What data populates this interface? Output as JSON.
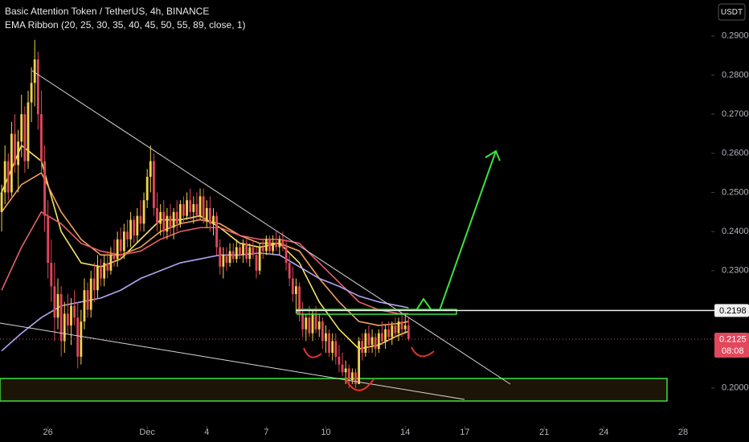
{
  "chart_data": {
    "type": "candlestick",
    "title": "Basic Attention Token / TetherUS, 4h, BINANCE",
    "subtitle": "EMA Ribbon (20, 25, 30, 35, 40, 45, 50, 55, 89, close, 1)",
    "currency": "USDT",
    "up_color": "#f2d34a",
    "down_color": "#e2475c",
    "xlim": [
      -0.5,
      214.5
    ],
    "xticks": [
      {
        "value": 14,
        "label": "26"
      },
      {
        "value": 44,
        "label": "Dec"
      },
      {
        "value": 62,
        "label": "4"
      },
      {
        "value": 80,
        "label": "7"
      },
      {
        "value": 98,
        "label": "10"
      },
      {
        "value": 122,
        "label": "14"
      },
      {
        "value": 140,
        "label": "17"
      },
      {
        "value": 164,
        "label": "21"
      },
      {
        "value": 182,
        "label": "24"
      },
      {
        "value": 206,
        "label": "28"
      }
    ],
    "ylim": [
      0.1903,
      0.2992
    ],
    "yticks": [
      {
        "value": 0.2,
        "label": "0.2000"
      },
      {
        "value": 0.23,
        "label": "0.2300"
      },
      {
        "value": 0.24,
        "label": "0.2400"
      },
      {
        "value": 0.25,
        "label": "0.2500"
      },
      {
        "value": 0.26,
        "label": "0.2600"
      },
      {
        "value": 0.27,
        "label": "0.2700"
      },
      {
        "value": 0.28,
        "label": "0.2800"
      },
      {
        "value": 0.29,
        "label": "0.2900"
      }
    ],
    "ohlc": [
      [
        0.245,
        0.252,
        0.24,
        0.25
      ],
      [
        0.25,
        0.262,
        0.247,
        0.258
      ],
      [
        0.258,
        0.26,
        0.248,
        0.25
      ],
      [
        0.25,
        0.268,
        0.249,
        0.265
      ],
      [
        0.265,
        0.27,
        0.255,
        0.257
      ],
      [
        0.257,
        0.266,
        0.25,
        0.263
      ],
      [
        0.263,
        0.275,
        0.259,
        0.27
      ],
      [
        0.27,
        0.272,
        0.255,
        0.258
      ],
      [
        0.258,
        0.276,
        0.256,
        0.273
      ],
      [
        0.273,
        0.282,
        0.268,
        0.278
      ],
      [
        0.278,
        0.289,
        0.272,
        0.284
      ],
      [
        0.284,
        0.286,
        0.266,
        0.27
      ],
      [
        0.27,
        0.276,
        0.255,
        0.258
      ],
      [
        0.258,
        0.262,
        0.24,
        0.244
      ],
      [
        0.244,
        0.248,
        0.228,
        0.232
      ],
      [
        0.232,
        0.238,
        0.222,
        0.226
      ],
      [
        0.226,
        0.232,
        0.212,
        0.218
      ],
      [
        0.218,
        0.228,
        0.215,
        0.224
      ],
      [
        0.224,
        0.226,
        0.208,
        0.212
      ],
      [
        0.212,
        0.222,
        0.209,
        0.219
      ],
      [
        0.219,
        0.224,
        0.214,
        0.216
      ],
      [
        0.216,
        0.223,
        0.211,
        0.221
      ],
      [
        0.221,
        0.225,
        0.216,
        0.218
      ],
      [
        0.218,
        0.222,
        0.205,
        0.208
      ],
      [
        0.208,
        0.22,
        0.206,
        0.217
      ],
      [
        0.217,
        0.228,
        0.215,
        0.225
      ],
      [
        0.225,
        0.227,
        0.218,
        0.22
      ],
      [
        0.22,
        0.23,
        0.218,
        0.228
      ],
      [
        0.228,
        0.232,
        0.222,
        0.225
      ],
      [
        0.225,
        0.234,
        0.223,
        0.231
      ],
      [
        0.231,
        0.233,
        0.226,
        0.228
      ],
      [
        0.228,
        0.234,
        0.226,
        0.232
      ],
      [
        0.232,
        0.235,
        0.228,
        0.23
      ],
      [
        0.23,
        0.236,
        0.229,
        0.234
      ],
      [
        0.234,
        0.238,
        0.231,
        0.233
      ],
      [
        0.233,
        0.24,
        0.231,
        0.238
      ],
      [
        0.238,
        0.241,
        0.233,
        0.235
      ],
      [
        0.235,
        0.242,
        0.233,
        0.24
      ],
      [
        0.24,
        0.243,
        0.236,
        0.238
      ],
      [
        0.238,
        0.245,
        0.236,
        0.243
      ],
      [
        0.243,
        0.244,
        0.237,
        0.239
      ],
      [
        0.239,
        0.246,
        0.237,
        0.244
      ],
      [
        0.244,
        0.248,
        0.24,
        0.242
      ],
      [
        0.242,
        0.25,
        0.24,
        0.248
      ],
      [
        0.248,
        0.256,
        0.246,
        0.254
      ],
      [
        0.254,
        0.262,
        0.25,
        0.258
      ],
      [
        0.258,
        0.26,
        0.244,
        0.246
      ],
      [
        0.246,
        0.25,
        0.24,
        0.242
      ],
      [
        0.242,
        0.247,
        0.239,
        0.245
      ],
      [
        0.245,
        0.248,
        0.238,
        0.24
      ],
      [
        0.24,
        0.246,
        0.238,
        0.244
      ],
      [
        0.244,
        0.247,
        0.239,
        0.241
      ],
      [
        0.241,
        0.246,
        0.238,
        0.245
      ],
      [
        0.245,
        0.248,
        0.24,
        0.242
      ],
      [
        0.242,
        0.248,
        0.241,
        0.247
      ],
      [
        0.247,
        0.249,
        0.242,
        0.244
      ],
      [
        0.244,
        0.25,
        0.243,
        0.248
      ],
      [
        0.248,
        0.251,
        0.243,
        0.245
      ],
      [
        0.245,
        0.249,
        0.242,
        0.247
      ],
      [
        0.247,
        0.25,
        0.243,
        0.244
      ],
      [
        0.244,
        0.251,
        0.243,
        0.249
      ],
      [
        0.249,
        0.251,
        0.242,
        0.243
      ],
      [
        0.243,
        0.248,
        0.241,
        0.246
      ],
      [
        0.246,
        0.249,
        0.24,
        0.242
      ],
      [
        0.242,
        0.246,
        0.239,
        0.244
      ],
      [
        0.244,
        0.245,
        0.234,
        0.236
      ],
      [
        0.236,
        0.238,
        0.229,
        0.231
      ],
      [
        0.231,
        0.236,
        0.228,
        0.234
      ],
      [
        0.234,
        0.236,
        0.23,
        0.232
      ],
      [
        0.232,
        0.237,
        0.231,
        0.235
      ],
      [
        0.235,
        0.237,
        0.232,
        0.233
      ],
      [
        0.233,
        0.238,
        0.232,
        0.236
      ],
      [
        0.236,
        0.237,
        0.233,
        0.234
      ],
      [
        0.234,
        0.238,
        0.232,
        0.237
      ],
      [
        0.237,
        0.238,
        0.232,
        0.233
      ],
      [
        0.233,
        0.237,
        0.231,
        0.236
      ],
      [
        0.236,
        0.238,
        0.233,
        0.234
      ],
      [
        0.234,
        0.236,
        0.228,
        0.23
      ],
      [
        0.23,
        0.237,
        0.229,
        0.236
      ],
      [
        0.236,
        0.238,
        0.233,
        0.235
      ],
      [
        0.235,
        0.239,
        0.234,
        0.238
      ],
      [
        0.238,
        0.239,
        0.234,
        0.235
      ],
      [
        0.235,
        0.239,
        0.234,
        0.237
      ],
      [
        0.237,
        0.24,
        0.235,
        0.236
      ],
      [
        0.236,
        0.239,
        0.234,
        0.238
      ],
      [
        0.238,
        0.24,
        0.235,
        0.236
      ],
      [
        0.236,
        0.238,
        0.23,
        0.232
      ],
      [
        0.232,
        0.234,
        0.226,
        0.228
      ],
      [
        0.228,
        0.231,
        0.222,
        0.224
      ],
      [
        0.224,
        0.228,
        0.219,
        0.226
      ],
      [
        0.226,
        0.227,
        0.217,
        0.219
      ],
      [
        0.219,
        0.222,
        0.213,
        0.215
      ],
      [
        0.215,
        0.219,
        0.212,
        0.218
      ],
      [
        0.218,
        0.221,
        0.213,
        0.214
      ],
      [
        0.214,
        0.22,
        0.212,
        0.219
      ],
      [
        0.219,
        0.221,
        0.214,
        0.215
      ],
      [
        0.215,
        0.219,
        0.213,
        0.217
      ],
      [
        0.217,
        0.218,
        0.21,
        0.212
      ],
      [
        0.212,
        0.216,
        0.209,
        0.214
      ],
      [
        0.214,
        0.215,
        0.208,
        0.209
      ],
      [
        0.209,
        0.214,
        0.207,
        0.212
      ],
      [
        0.212,
        0.214,
        0.206,
        0.208
      ],
      [
        0.208,
        0.211,
        0.204,
        0.206
      ],
      [
        0.206,
        0.209,
        0.203,
        0.204
      ],
      [
        0.204,
        0.207,
        0.201,
        0.205
      ],
      [
        0.205,
        0.206,
        0.2,
        0.202
      ],
      [
        0.202,
        0.205,
        0.201,
        0.204
      ],
      [
        0.204,
        0.205,
        0.2,
        0.201
      ],
      [
        0.201,
        0.213,
        0.201,
        0.212
      ],
      [
        0.212,
        0.214,
        0.207,
        0.209
      ],
      [
        0.209,
        0.215,
        0.208,
        0.214
      ],
      [
        0.214,
        0.216,
        0.209,
        0.211
      ],
      [
        0.211,
        0.215,
        0.209,
        0.213
      ],
      [
        0.213,
        0.214,
        0.208,
        0.21
      ],
      [
        0.21,
        0.215,
        0.209,
        0.214
      ],
      [
        0.214,
        0.217,
        0.211,
        0.212
      ],
      [
        0.212,
        0.216,
        0.21,
        0.215
      ],
      [
        0.215,
        0.217,
        0.212,
        0.213
      ],
      [
        0.213,
        0.217,
        0.211,
        0.216
      ],
      [
        0.216,
        0.218,
        0.213,
        0.214
      ],
      [
        0.214,
        0.218,
        0.212,
        0.217
      ],
      [
        0.217,
        0.219,
        0.213,
        0.215
      ],
      [
        0.215,
        0.219,
        0.214,
        0.216
      ],
      [
        0.216,
        0.218,
        0.212,
        0.2125
      ]
    ],
    "ribbon_x": [
      0,
      6,
      12,
      18,
      24,
      30,
      36,
      42,
      48,
      54,
      60,
      66,
      72,
      78,
      84,
      90,
      96,
      102,
      108,
      114,
      120,
      123
    ],
    "ribbons": [
      {
        "color": "#f5e663",
        "values": [
          0.25,
          0.262,
          0.258,
          0.24,
          0.232,
          0.231,
          0.233,
          0.238,
          0.243,
          0.243,
          0.244,
          0.241,
          0.237,
          0.236,
          0.237,
          0.232,
          0.222,
          0.215,
          0.21,
          0.211,
          0.2135,
          0.2145
        ]
      },
      {
        "color": "#f4a35a",
        "values": [
          0.245,
          0.252,
          0.255,
          0.245,
          0.238,
          0.234,
          0.234,
          0.236,
          0.24,
          0.242,
          0.243,
          0.242,
          0.239,
          0.237,
          0.237,
          0.235,
          0.228,
          0.222,
          0.217,
          0.216,
          0.2165,
          0.217
        ]
      },
      {
        "color": "#e8606a",
        "values": [
          0.225,
          0.236,
          0.245,
          0.242,
          0.237,
          0.235,
          0.234,
          0.235,
          0.238,
          0.24,
          0.241,
          0.241,
          0.239,
          0.238,
          0.238,
          0.237,
          0.232,
          0.227,
          0.222,
          0.22,
          0.219,
          0.219
        ]
      },
      {
        "color": "#b3a4f0",
        "values": [
          0.2095,
          0.214,
          0.218,
          0.221,
          0.222,
          0.223,
          0.225,
          0.228,
          0.23,
          0.232,
          0.233,
          0.234,
          0.234,
          0.2345,
          0.234,
          0.231,
          0.228,
          0.226,
          0.2235,
          0.222,
          0.221,
          0.2205
        ]
      }
    ],
    "price_line": {
      "value": 0.2198,
      "label": "0.2198"
    },
    "last_price": {
      "value": 0.2125,
      "label": "0.2125"
    },
    "countdown": "08:08"
  }
}
